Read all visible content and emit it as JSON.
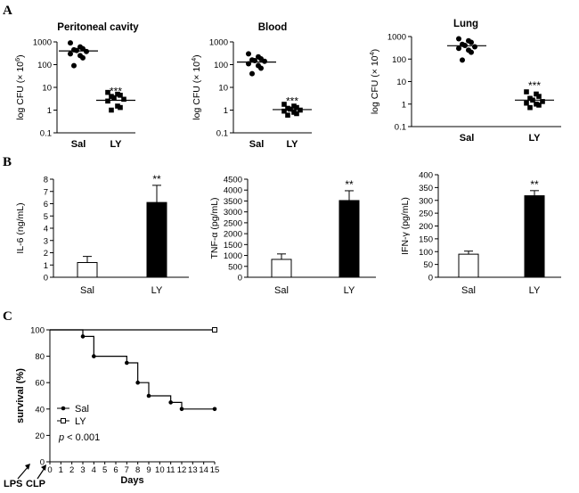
{
  "figure": {
    "panels": [
      {
        "letter": "A"
      },
      {
        "letter": "B"
      },
      {
        "letter": "C"
      }
    ]
  },
  "chart_data": [
    {
      "id": "A1",
      "type": "scatter",
      "title": "Peritoneal cavity",
      "ylabel_pre": "log CFU (",
      "ylabel_mult": "× 10",
      "ylabel_exp": "6",
      "ylabel_post": ")",
      "categories": [
        "Sal",
        "LY"
      ],
      "scale": "log",
      "ylim": [
        0.1,
        1000
      ],
      "yticks": [
        0.1,
        1,
        10,
        100,
        1000
      ],
      "ytick_labels": [
        "0.1",
        "1",
        "10",
        "100",
        "1000"
      ],
      "series": [
        {
          "values": [
            900,
            600,
            500,
            450,
            420,
            380,
            300,
            250,
            200,
            90
          ],
          "mean": 400,
          "marker": "circle"
        },
        {
          "values": [
            6,
            5,
            4.5,
            4,
            3.5,
            3,
            2.5,
            1.5,
            1.3,
            1
          ],
          "mean": 2.7,
          "marker": "square"
        }
      ],
      "annotation": {
        "text": "***",
        "category": "LY",
        "at": 8
      }
    },
    {
      "id": "A2",
      "type": "scatter",
      "title": "Blood",
      "ylabel_pre": "log CFU (",
      "ylabel_mult": "× 10",
      "ylabel_exp": "4",
      "ylabel_post": ")",
      "categories": [
        "Sal",
        "LY"
      ],
      "scale": "log",
      "ylim": [
        0.1,
        1000
      ],
      "yticks": [
        0.1,
        1,
        10,
        100,
        1000
      ],
      "ytick_labels": [
        "0.1",
        "1",
        "10",
        "100",
        "1000"
      ],
      "series": [
        {
          "values": [
            300,
            220,
            180,
            160,
            150,
            140,
            110,
            90,
            70,
            40
          ],
          "mean": 130,
          "marker": "circle"
        },
        {
          "values": [
            1.8,
            1.5,
            1.3,
            1.2,
            1.1,
            1,
            0.9,
            0.8,
            0.7,
            0.6
          ],
          "mean": 1.05,
          "marker": "square"
        }
      ],
      "annotation": {
        "text": "***",
        "category": "LY",
        "at": 3
      }
    },
    {
      "id": "A3",
      "type": "scatter",
      "title": "Lung",
      "ylabel_pre": "log CFU (",
      "ylabel_mult": "× 10",
      "ylabel_exp": "4",
      "ylabel_post": ")",
      "categories": [
        "Sal",
        "LY"
      ],
      "scale": "log",
      "ylim": [
        0.1,
        1000
      ],
      "yticks": [
        0.1,
        1,
        10,
        100,
        1000
      ],
      "ytick_labels": [
        "0.1",
        "1",
        "10",
        "100",
        "1000"
      ],
      "series": [
        {
          "values": [
            800,
            650,
            550,
            450,
            400,
            350,
            300,
            250,
            200,
            90
          ],
          "mean": 390,
          "marker": "circle"
        },
        {
          "values": [
            3.5,
            2.8,
            2.2,
            1.8,
            1.5,
            1.3,
            1.1,
            1,
            0.9,
            0.7
          ],
          "mean": 1.5,
          "marker": "square"
        }
      ],
      "annotation": {
        "text": "***",
        "category": "LY",
        "at": 8
      }
    },
    {
      "id": "B1",
      "type": "bar",
      "ylabel": "IL-6 (ng/mL)",
      "categories": [
        "Sal",
        "LY"
      ],
      "values": [
        1.2,
        6.1
      ],
      "errors": [
        0.5,
        1.4
      ],
      "fills": [
        "#ffffff",
        "#000000"
      ],
      "ylim": [
        0,
        8
      ],
      "yticks": [
        0,
        1,
        2,
        3,
        4,
        5,
        6,
        7,
        8
      ],
      "annotation": {
        "text": "**",
        "category": "LY"
      }
    },
    {
      "id": "B2",
      "type": "bar",
      "ylabel": "TNF-α (pg/mL)",
      "categories": [
        "Sal",
        "LY"
      ],
      "values": [
        820,
        3520
      ],
      "errors": [
        250,
        450
      ],
      "fills": [
        "#ffffff",
        "#000000"
      ],
      "ylim": [
        0,
        4500
      ],
      "yticks": [
        0,
        500,
        1000,
        1500,
        2000,
        2500,
        3000,
        3500,
        4000,
        4500
      ],
      "annotation": {
        "text": "**",
        "category": "LY"
      }
    },
    {
      "id": "B3",
      "type": "bar",
      "ylabel": "IFN-γ (pg/mL)",
      "categories": [
        "Sal",
        "LY"
      ],
      "values": [
        90,
        318
      ],
      "errors": [
        12,
        20
      ],
      "fills": [
        "#ffffff",
        "#000000"
      ],
      "ylim": [
        0,
        400
      ],
      "yticks": [
        0,
        50,
        100,
        150,
        200,
        250,
        300,
        350,
        400
      ],
      "annotation": {
        "text": "**",
        "category": "LY"
      }
    },
    {
      "id": "C",
      "type": "line",
      "ylabel": "survival (%)",
      "xlabel": "Days",
      "xlim": [
        0,
        15
      ],
      "ylim": [
        0,
        100
      ],
      "xticks": [
        0,
        1,
        2,
        3,
        4,
        5,
        6,
        7,
        8,
        9,
        10,
        11,
        12,
        13,
        14,
        15
      ],
      "yticks": [
        0,
        20,
        40,
        60,
        80,
        100
      ],
      "series": [
        {
          "name": "Sal",
          "marker": "filled-circle",
          "x": [
            0,
            3,
            4,
            7,
            8,
            9,
            11,
            12,
            15
          ],
          "y": [
            100,
            95,
            80,
            75,
            60,
            50,
            45,
            40,
            40
          ]
        },
        {
          "name": "LY",
          "marker": "open-square",
          "x": [
            0,
            15
          ],
          "y": [
            100,
            100
          ]
        }
      ],
      "pvalue_italic": "p",
      "pvalue_rest": " < 0.001",
      "events": [
        {
          "label": "LPS",
          "day": -1
        },
        {
          "label": "CLP",
          "day": 0
        }
      ]
    }
  ]
}
